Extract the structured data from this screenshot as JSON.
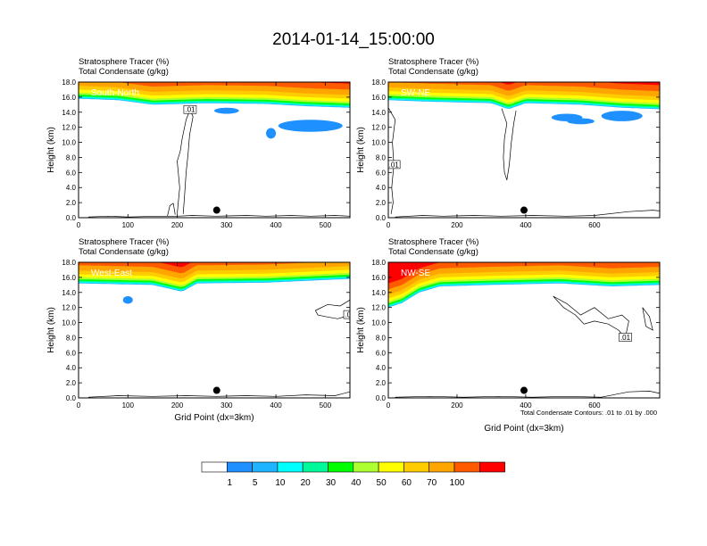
{
  "title": "2014-01-14_15:00:00",
  "colors": {
    "background": "#ffffff",
    "levels": [
      "#ffffff",
      "#1e90ff",
      "#1eb4ff",
      "#00ffff",
      "#00fa9a",
      "#00ff00",
      "#adff2f",
      "#ffff00",
      "#ffcc00",
      "#ffa500",
      "#ff5a00",
      "#ff0000"
    ]
  },
  "colorbar": {
    "labels": [
      "1",
      "5",
      "10",
      "20",
      "30",
      "40",
      "50",
      "60",
      "70",
      "100"
    ]
  },
  "contour_note": "Total Condensate Contours: .01 to .01 by .000",
  "contour_label": ".01",
  "chart_data": [
    {
      "type": "heatmap",
      "name": "South-North",
      "header": [
        "Stratosphere Tracer   (%)",
        "Total Condensate   (g/kg)"
      ],
      "ylabel": "Height (km)",
      "xlabel": "",
      "xlim": [
        0,
        550
      ],
      "ylim": [
        0,
        18
      ],
      "xticks": [
        0,
        100,
        200,
        300,
        400,
        500
      ],
      "yticks": [
        0,
        2,
        4,
        6,
        8,
        10,
        12,
        14,
        16,
        18
      ],
      "ytick_labels": [
        "0.0",
        "2.0",
        "4.0",
        "6.0",
        "8.0",
        "10.0",
        "12.0",
        "14.0",
        "16.0",
        "18.0"
      ],
      "marker": [
        280,
        1.0
      ],
      "tropopause_km": [
        [
          0,
          15.8
        ],
        [
          80,
          15.6
        ],
        [
          150,
          15.0
        ],
        [
          260,
          15.2
        ],
        [
          380,
          15.1
        ],
        [
          460,
          14.8
        ],
        [
          550,
          14.6
        ]
      ],
      "blobs": [
        [
          300,
          14.2,
          25,
          0.4
        ],
        [
          390,
          11.2,
          10,
          0.7
        ],
        [
          470,
          12.2,
          65,
          0.8
        ]
      ],
      "contours": [
        [
          [
            200,
            0.5
          ],
          [
            205,
            4
          ],
          [
            200,
            7.5
          ],
          [
            206,
            8.8
          ],
          [
            210,
            10.5
          ],
          [
            218,
            13
          ],
          [
            226,
            14.3
          ],
          [
            232,
            13.4
          ],
          [
            225,
            11
          ],
          [
            222,
            8.5
          ],
          [
            218,
            6
          ],
          [
            215,
            3
          ],
          [
            212,
            0.5
          ]
        ],
        [
          [
            180,
            0.2
          ],
          [
            185,
            1.6
          ],
          [
            192,
            1.9
          ],
          [
            196,
            0.4
          ]
        ],
        [
          [
            20,
            0.1
          ],
          [
            60,
            0.2
          ],
          [
            100,
            0.1
          ],
          [
            160,
            0.2
          ],
          [
            200,
            0.2
          ],
          [
            230,
            0.3
          ],
          [
            280,
            0.2
          ],
          [
            340,
            0.3
          ],
          [
            380,
            0.2
          ],
          [
            430,
            0.3
          ],
          [
            470,
            0.2
          ],
          [
            520,
            0.3
          ],
          [
            550,
            0.2
          ]
        ]
      ]
    },
    {
      "type": "heatmap",
      "name": "SW-NE",
      "header": [
        "Stratosphere Tracer   (%)",
        "Total Condensate   (g/kg)"
      ],
      "ylabel": "Height (km)",
      "xlabel": "",
      "xlim": [
        0,
        790
      ],
      "ylim": [
        0,
        18
      ],
      "xticks": [
        0,
        200,
        400,
        600
      ],
      "yticks": [
        0,
        2,
        4,
        6,
        8,
        10,
        12,
        14,
        16,
        18
      ],
      "ytick_labels": [
        "0.0",
        "2.0",
        "4.0",
        "6.0",
        "8.0",
        "10.0",
        "12.0",
        "14.0",
        "16.0",
        "18.0"
      ],
      "marker": [
        395,
        1.0
      ],
      "tropopause_km": [
        [
          0,
          15.6
        ],
        [
          120,
          15.4
        ],
        [
          300,
          15.2
        ],
        [
          350,
          14.4
        ],
        [
          400,
          15.2
        ],
        [
          560,
          15.0
        ],
        [
          680,
          14.6
        ],
        [
          790,
          14.4
        ]
      ],
      "blobs": [
        [
          520,
          13.3,
          45,
          0.5
        ],
        [
          680,
          13.5,
          60,
          0.7
        ],
        [
          560,
          12.8,
          40,
          0.4
        ]
      ],
      "contours": [
        [
          [
            0,
            14.6
          ],
          [
            20,
            13
          ],
          [
            12,
            10
          ],
          [
            16,
            7
          ],
          [
            10,
            4
          ],
          [
            14,
            2
          ],
          [
            8,
            0.5
          ]
        ],
        [
          [
            330,
            14.5
          ],
          [
            345,
            12.5
          ],
          [
            338,
            10.5
          ],
          [
            335,
            8
          ],
          [
            338,
            6
          ],
          [
            345,
            5
          ],
          [
            352,
            7
          ],
          [
            358,
            10
          ],
          [
            365,
            12.5
          ],
          [
            372,
            14.2
          ]
        ],
        [
          [
            20,
            0.1
          ],
          [
            100,
            0.3
          ],
          [
            160,
            0.2
          ],
          [
            250,
            0.3
          ],
          [
            330,
            0.2
          ],
          [
            420,
            0.3
          ],
          [
            520,
            0.2
          ],
          [
            600,
            0.3
          ],
          [
            700,
            0.8
          ],
          [
            770,
            1.0
          ],
          [
            790,
            0.9
          ]
        ]
      ]
    },
    {
      "type": "heatmap",
      "name": "West-East",
      "header": [
        "Stratosphere Tracer   (%)",
        "Total Condensate   (g/kg)"
      ],
      "ylabel": "Height (km)",
      "xlabel": "Grid Point (dx=3km)",
      "xlim": [
        0,
        550
      ],
      "ylim": [
        0,
        18
      ],
      "xticks": [
        0,
        100,
        200,
        300,
        400,
        500
      ],
      "yticks": [
        0,
        2,
        4,
        6,
        8,
        10,
        12,
        14,
        16,
        18
      ],
      "ytick_labels": [
        "0.0",
        "2.0",
        "4.0",
        "6.0",
        "8.0",
        "10.0",
        "12.0",
        "14.0",
        "16.0",
        "18.0"
      ],
      "marker": [
        280,
        1.0
      ],
      "tropopause_km": [
        [
          0,
          15.2
        ],
        [
          150,
          15.0
        ],
        [
          210,
          14.1
        ],
        [
          240,
          15.2
        ],
        [
          380,
          15.3
        ],
        [
          550,
          15.8
        ]
      ],
      "blobs": [
        [
          100,
          13.0,
          10,
          0.5
        ]
      ],
      "contours": [
        [
          [
            480,
            11.6
          ],
          [
            505,
            12.4
          ],
          [
            530,
            12.2
          ],
          [
            550,
            13.0
          ],
          [
            550,
            11.0
          ],
          [
            525,
            10.5
          ],
          [
            500,
            10.8
          ],
          [
            485,
            11.0
          ],
          [
            480,
            11.6
          ]
        ],
        [
          [
            20,
            0.1
          ],
          [
            80,
            0.3
          ],
          [
            150,
            0.2
          ],
          [
            220,
            0.3
          ],
          [
            280,
            0.2
          ],
          [
            340,
            0.3
          ],
          [
            400,
            0.2
          ],
          [
            460,
            0.4
          ],
          [
            520,
            0.3
          ],
          [
            550,
            0.8
          ]
        ]
      ]
    },
    {
      "type": "heatmap",
      "name": "NW-SE",
      "header": [
        "Stratosphere Tracer   (%)",
        "Total Condensate   (g/kg)"
      ],
      "ylabel": "Height (km)",
      "xlabel": "Grid Point (dx=3km)",
      "xlim": [
        0,
        790
      ],
      "ylim": [
        0,
        18
      ],
      "xticks": [
        0,
        200,
        400,
        600
      ],
      "yticks": [
        0,
        2,
        4,
        6,
        8,
        10,
        12,
        14,
        16,
        18
      ],
      "ytick_labels": [
        "0.0",
        "2.0",
        "4.0",
        "6.0",
        "8.0",
        "10.0",
        "12.0",
        "14.0",
        "16.0",
        "18.0"
      ],
      "marker": [
        395,
        1.0
      ],
      "tropopause_km": [
        [
          0,
          12.0
        ],
        [
          40,
          12.6
        ],
        [
          90,
          14.0
        ],
        [
          150,
          14.8
        ],
        [
          300,
          15.0
        ],
        [
          500,
          15.2
        ],
        [
          650,
          14.8
        ],
        [
          790,
          15.0
        ]
      ],
      "blobs": [],
      "contours": [
        [
          [
            480,
            13.5
          ],
          [
            520,
            12.5
          ],
          [
            560,
            11.0
          ],
          [
            600,
            12.0
          ],
          [
            640,
            10.5
          ],
          [
            680,
            11.0
          ],
          [
            700,
            10.2
          ],
          [
            690,
            8.0
          ],
          [
            670,
            9.0
          ],
          [
            640,
            9.8
          ],
          [
            600,
            10.2
          ],
          [
            570,
            9.8
          ],
          [
            545,
            11.0
          ],
          [
            510,
            12.0
          ],
          [
            480,
            13.5
          ]
        ],
        [
          [
            740,
            12.0
          ],
          [
            760,
            10.8
          ],
          [
            770,
            9.0
          ],
          [
            750,
            9.5
          ],
          [
            740,
            12.0
          ]
        ],
        [
          [
            20,
            0.1
          ],
          [
            120,
            0.2
          ],
          [
            220,
            0.1
          ],
          [
            320,
            0.2
          ],
          [
            420,
            0.1
          ],
          [
            520,
            0.2
          ],
          [
            620,
            0.1
          ],
          [
            700,
            0.8
          ],
          [
            760,
            0.9
          ],
          [
            790,
            0.6
          ]
        ]
      ]
    }
  ]
}
